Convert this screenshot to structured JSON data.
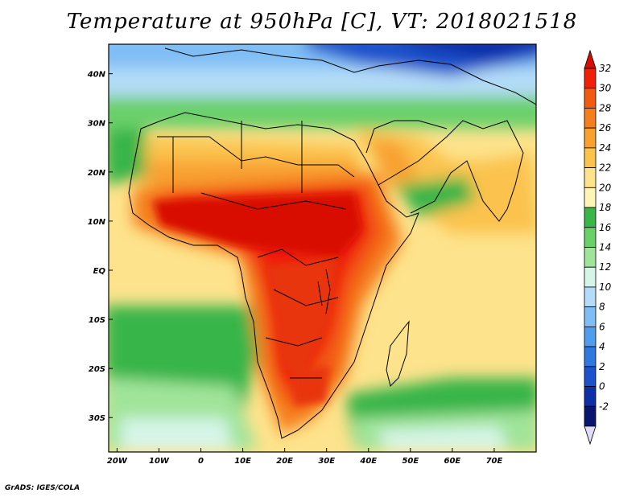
{
  "title": "Temperature at 950hPa [C], VT: 2018021518",
  "credit": "GrADS: IGES/COLA",
  "map": {
    "lon_range": [
      -22,
      80
    ],
    "lat_range": [
      -37,
      46
    ],
    "x_ticks": [
      {
        "lon": -20,
        "label": "20W"
      },
      {
        "lon": -10,
        "label": "10W"
      },
      {
        "lon": 0,
        "label": "0"
      },
      {
        "lon": 10,
        "label": "10E"
      },
      {
        "lon": 20,
        "label": "20E"
      },
      {
        "lon": 30,
        "label": "30E"
      },
      {
        "lon": 40,
        "label": "40E"
      },
      {
        "lon": 50,
        "label": "50E"
      },
      {
        "lon": 60,
        "label": "60E"
      },
      {
        "lon": 70,
        "label": "70E"
      }
    ],
    "y_ticks": [
      {
        "lat": 40,
        "label": "40N"
      },
      {
        "lat": 30,
        "label": "30N"
      },
      {
        "lat": 20,
        "label": "20N"
      },
      {
        "lat": 10,
        "label": "10N"
      },
      {
        "lat": 0,
        "label": "EQ"
      },
      {
        "lat": -10,
        "label": "10S"
      },
      {
        "lat": -20,
        "label": "20S"
      },
      {
        "lat": -30,
        "label": "30S"
      }
    ]
  },
  "colorbar": {
    "levels": [
      "32",
      "30",
      "28",
      "26",
      "24",
      "22",
      "20",
      "18",
      "16",
      "14",
      "12",
      "10",
      "8",
      "6",
      "4",
      "2",
      "0",
      "-2"
    ],
    "colors": [
      "#ef1f08",
      "#f25a12",
      "#f57f1c",
      "#f8a130",
      "#fbc34e",
      "#fde38c",
      "#fff5b8",
      "#39b54a",
      "#6ad06a",
      "#a0e49a",
      "#d5f5e8",
      "#b4dcf8",
      "#7fbef5",
      "#4f9ded",
      "#2f78e0",
      "#1c52cc",
      "#0e2fa8",
      "#0a1570"
    ],
    "top_color": "#d80c02",
    "bottom_color": "#e3dcf8"
  }
}
